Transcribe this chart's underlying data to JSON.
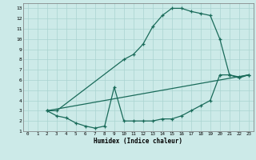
{
  "xlabel": "Humidex (Indice chaleur)",
  "bg_color": "#cceae8",
  "grid_color": "#aad4d0",
  "line_color": "#1a6b5a",
  "xlim": [
    -0.5,
    23.5
  ],
  "ylim": [
    1,
    13.5
  ],
  "xticks": [
    0,
    1,
    2,
    3,
    4,
    5,
    6,
    7,
    8,
    9,
    10,
    11,
    12,
    13,
    14,
    15,
    16,
    17,
    18,
    19,
    20,
    21,
    22,
    23
  ],
  "yticks": [
    1,
    2,
    3,
    4,
    5,
    6,
    7,
    8,
    9,
    10,
    11,
    12,
    13
  ],
  "line1_x": [
    2,
    3,
    10,
    11,
    12,
    13,
    14,
    15,
    16,
    17,
    18,
    19,
    20,
    21,
    22,
    23
  ],
  "line1_y": [
    3,
    3,
    8,
    8.5,
    9.5,
    11.2,
    12.3,
    13,
    13,
    12.7,
    12.5,
    12.3,
    10,
    6.5,
    6.3,
    6.5
  ],
  "line2_x": [
    2,
    3,
    4,
    5,
    6,
    7,
    8,
    9,
    10,
    11,
    12,
    13,
    14,
    15,
    16,
    17,
    18,
    19,
    20,
    21,
    22,
    23
  ],
  "line2_y": [
    3,
    2.5,
    2.3,
    1.8,
    1.5,
    1.3,
    1.5,
    5.3,
    2,
    2,
    2,
    2,
    2.2,
    2.2,
    2.5,
    3,
    3.5,
    4,
    6.5,
    6.5,
    6.2,
    6.5
  ],
  "line3_x": [
    2,
    23
  ],
  "line3_y": [
    3,
    6.5
  ]
}
